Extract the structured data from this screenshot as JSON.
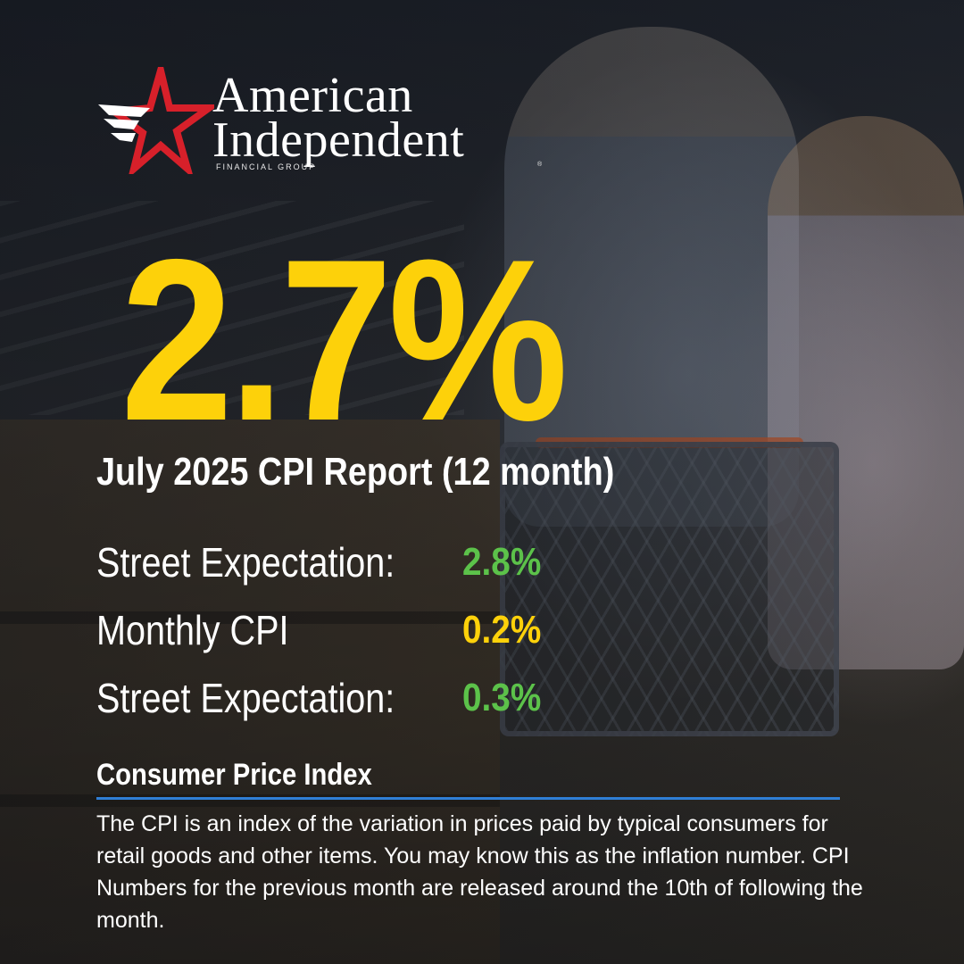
{
  "logo": {
    "line1": "American",
    "line2": "Independent",
    "subtitle": "FINANCIAL GROUP",
    "registered": "®",
    "colors": {
      "star_red": "#d7202a",
      "star_white": "#ffffff"
    }
  },
  "headline": {
    "value": "2.7%",
    "title": "July 2025 CPI Report (12 month)"
  },
  "stats": [
    {
      "label": "Street Expectation:",
      "value": "2.8%",
      "color": "#5cc24a"
    },
    {
      "label": "Monthly CPI",
      "value": "0.2%",
      "color": "#fdd10a"
    },
    {
      "label": "Street Expectation:",
      "value": "0.3%",
      "color": "#5cc24a"
    }
  ],
  "cpi_section": {
    "heading": "Consumer Price Index",
    "body": "The CPI is an index of the variation in prices paid by typical consumers for retail goods and other items. You may know this as the inflation number. CPI Numbers for the previous month are released around the 10th of following the month.",
    "rule_color": "#2f7fd6"
  },
  "theme": {
    "accent_yellow": "#fdd10a",
    "accent_green": "#5cc24a",
    "text": "#ffffff"
  }
}
